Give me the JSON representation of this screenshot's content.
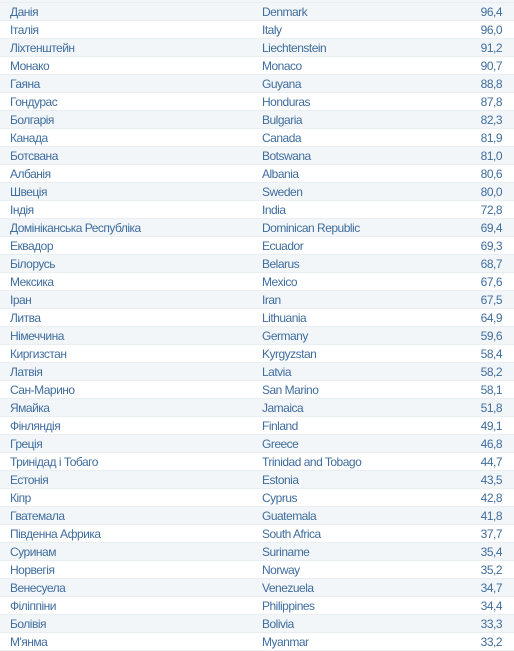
{
  "table": {
    "rows": [
      {
        "uk": "Данія",
        "en": "Denmark",
        "value": "96,4"
      },
      {
        "uk": "Італія",
        "en": "Italy",
        "value": "96,0"
      },
      {
        "uk": "Ліхтенштейн",
        "en": "Liechtenstein",
        "value": "91,2"
      },
      {
        "uk": "Монако",
        "en": "Monaco",
        "value": "90,7"
      },
      {
        "uk": "Гаяна",
        "en": "Guyana",
        "value": "88,8"
      },
      {
        "uk": "Гондурас",
        "en": "Honduras",
        "value": "87,8"
      },
      {
        "uk": "Болгарія",
        "en": "Bulgaria",
        "value": "82,3"
      },
      {
        "uk": "Канада",
        "en": "Canada",
        "value": "81,9"
      },
      {
        "uk": "Ботсвана",
        "en": "Botswana",
        "value": "81,0"
      },
      {
        "uk": "Албанія",
        "en": "Albania",
        "value": "80,6"
      },
      {
        "uk": "Швеція",
        "en": "Sweden",
        "value": "80,0"
      },
      {
        "uk": "Індія",
        "en": "India",
        "value": "72,8"
      },
      {
        "uk": "Домініканська Республіка",
        "en": "Dominican Republic",
        "value": "69,4"
      },
      {
        "uk": "Еквадор",
        "en": "Ecuador",
        "value": "69,3"
      },
      {
        "uk": "Білорусь",
        "en": "Belarus",
        "value": "68,7"
      },
      {
        "uk": "Мексика",
        "en": "Mexico",
        "value": "67,6"
      },
      {
        "uk": "Іран",
        "en": "Iran",
        "value": "67,5"
      },
      {
        "uk": "Литва",
        "en": "Lithuania",
        "value": "64,9"
      },
      {
        "uk": "Німеччина",
        "en": "Germany",
        "value": "59,6"
      },
      {
        "uk": "Киргизстан",
        "en": "Kyrgyzstan",
        "value": "58,4"
      },
      {
        "uk": "Латвія",
        "en": "Latvia",
        "value": "58,2"
      },
      {
        "uk": "Сан-Марино",
        "en": "San Marino",
        "value": "58,1"
      },
      {
        "uk": "Ямайка",
        "en": "Jamaica",
        "value": "51,8"
      },
      {
        "uk": "Фінляндія",
        "en": "Finland",
        "value": "49,1"
      },
      {
        "uk": "Греція",
        "en": "Greece",
        "value": "46,8"
      },
      {
        "uk": "Тринідад і Тобаго",
        "en": "Trinidad and Tobago",
        "value": "44,7"
      },
      {
        "uk": "Естонія",
        "en": "Estonia",
        "value": "43,5"
      },
      {
        "uk": "Кіпр",
        "en": "Cyprus",
        "value": "42,8"
      },
      {
        "uk": "Гватемала",
        "en": "Guatemala",
        "value": "41,8"
      },
      {
        "uk": "Південна Африка",
        "en": "South Africa",
        "value": "37,7"
      },
      {
        "uk": "Суринам",
        "en": "Suriname",
        "value": "35,4"
      },
      {
        "uk": "Норвегія",
        "en": "Norway",
        "value": "35,2"
      },
      {
        "uk": "Венесуела",
        "en": "Venezuela",
        "value": "34,7"
      },
      {
        "uk": "Філіппіни",
        "en": "Philippines",
        "value": "34,4"
      },
      {
        "uk": "Болівія",
        "en": "Bolivia",
        "value": "33,3"
      },
      {
        "uk": "М'янма",
        "en": "Myanmar",
        "value": "33,2"
      }
    ]
  }
}
